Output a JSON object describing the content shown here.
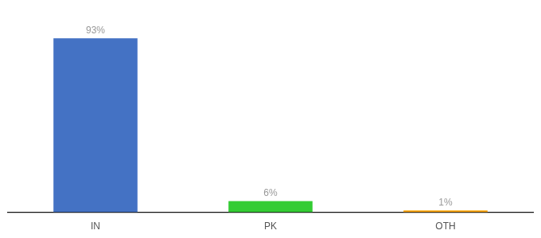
{
  "chart_data": {
    "type": "bar",
    "categories": [
      "IN",
      "PK",
      "OTH"
    ],
    "values": [
      93,
      6,
      1
    ],
    "value_labels": [
      "93%",
      "6%",
      "1%"
    ],
    "data_labels": true,
    "colors": [
      "#4472C4",
      "#33CC33",
      "#FFA500"
    ],
    "ylim": [
      0,
      105
    ],
    "tick_labels": "x",
    "grid": false
  }
}
